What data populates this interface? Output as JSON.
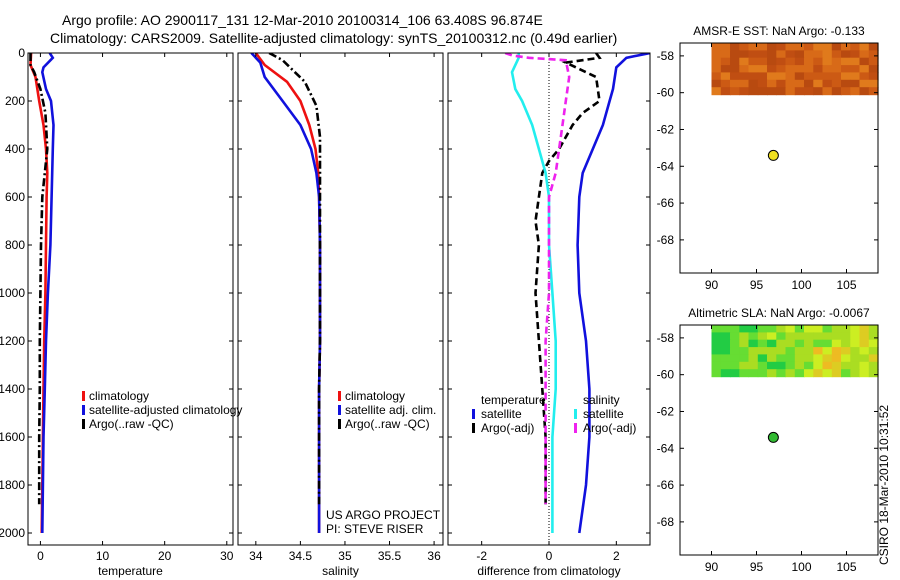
{
  "header": {
    "line1": "Argo profile: AO 2900117_131 12-Mar-2010 20100314_106 63.408S 96.874E",
    "line2": "Climatology: CARS2009. Satellite-adjusted climatology: synTS_20100312.nc (0.49d earlier)"
  },
  "side_label": "CSIRO 18-Mar-2010 10:31:52",
  "colors": {
    "clim": "#ee1111",
    "sat": "#1111dd",
    "argo": "#000000",
    "sal_sat": "#22eeee",
    "sal_argo": "#ee22ee",
    "dot_sst": "#f0e020",
    "dot_sla": "#33bb33"
  },
  "chart_data": [
    {
      "type": "line",
      "id": "temperature",
      "xlabel": "temperature",
      "xlim": [
        -2,
        31
      ],
      "ylim": [
        0,
        2050
      ],
      "xticks": [
        0,
        10,
        20,
        30
      ],
      "xtick_labels": [
        "0",
        "10",
        "20",
        "30"
      ],
      "yticks": [
        0,
        200,
        400,
        600,
        800,
        1000,
        1200,
        1400,
        1600,
        1800,
        2000
      ],
      "ytick_labels": [
        "0",
        "200",
        "400",
        "600",
        "800",
        "1000",
        "1200",
        "1400",
        "1600",
        "1800",
        "2000"
      ],
      "series": [
        {
          "name": "climatology",
          "color_key": "clim",
          "dash": "solid",
          "points": [
            [
              -1.5,
              0
            ],
            [
              -1.6,
              50
            ],
            [
              -0.8,
              100
            ],
            [
              -0.2,
              200
            ],
            [
              0.5,
              300
            ],
            [
              0.9,
              400
            ],
            [
              1.1,
              500
            ],
            [
              1.0,
              600
            ],
            [
              0.9,
              800
            ],
            [
              0.8,
              1000
            ],
            [
              0.6,
              1200
            ],
            [
              0.5,
              1400
            ],
            [
              0.4,
              1600
            ],
            [
              0.3,
              1800
            ],
            [
              0.2,
              2000
            ]
          ]
        },
        {
          "name": "satellite-adjusted climatology",
          "color_key": "sat",
          "dash": "solid",
          "points": [
            [
              1.5,
              0
            ],
            [
              2.0,
              20
            ],
            [
              0.5,
              60
            ],
            [
              0.3,
              80
            ],
            [
              0.9,
              150
            ],
            [
              1.7,
              200
            ],
            [
              2.1,
              300
            ],
            [
              2.0,
              400
            ],
            [
              1.9,
              500
            ],
            [
              1.8,
              600
            ],
            [
              1.6,
              800
            ],
            [
              1.2,
              1000
            ],
            [
              0.9,
              1200
            ],
            [
              0.7,
              1400
            ],
            [
              0.5,
              1600
            ],
            [
              0.4,
              1800
            ],
            [
              0.3,
              2000
            ]
          ]
        },
        {
          "name": "Argo(..raw -QC)",
          "color_key": "argo",
          "dash": "dashdot",
          "points": [
            [
              -1.6,
              0
            ],
            [
              -1.6,
              50
            ],
            [
              -1.0,
              80
            ],
            [
              0.0,
              150
            ],
            [
              0.8,
              250
            ],
            [
              1.1,
              400
            ],
            [
              0.7,
              500
            ],
            [
              0.3,
              600
            ],
            [
              0.1,
              800
            ],
            [
              0.0,
              1000
            ],
            [
              -0.1,
              1200
            ],
            [
              -0.1,
              1400
            ],
            [
              -0.2,
              1600
            ],
            [
              -0.2,
              1800
            ],
            [
              -0.2,
              1880
            ]
          ]
        }
      ],
      "legend": {
        "placement": "lower-right",
        "entries": [
          "climatology",
          "satellite-adjusted climatology",
          "Argo(..raw -QC)"
        ]
      }
    },
    {
      "type": "line",
      "id": "salinity",
      "xlabel": "salinity",
      "xlim": [
        33.8,
        36.1
      ],
      "ylim": [
        0,
        2050
      ],
      "xticks": [
        34,
        34.5,
        35,
        35.5,
        36
      ],
      "xtick_labels": [
        "34",
        "34.5",
        "35",
        "35.5",
        "36"
      ],
      "yticks": [
        0,
        200,
        400,
        600,
        800,
        1000,
        1200,
        1400,
        1600,
        1800,
        2000
      ],
      "series": [
        {
          "name": "climatology",
          "color_key": "clim",
          "dash": "solid",
          "points": [
            [
              34.0,
              0
            ],
            [
              34.1,
              50
            ],
            [
              34.35,
              120
            ],
            [
              34.5,
              200
            ],
            [
              34.6,
              300
            ],
            [
              34.67,
              400
            ],
            [
              34.7,
              500
            ],
            [
              34.71,
              600
            ],
            [
              34.72,
              800
            ],
            [
              34.72,
              1000
            ],
            [
              34.72,
              1200
            ],
            [
              34.71,
              1400
            ],
            [
              34.71,
              1600
            ],
            [
              34.71,
              1800
            ],
            [
              34.71,
              2000
            ]
          ]
        },
        {
          "name": "satellite adj. clim.",
          "color_key": "sat",
          "dash": "solid",
          "points": [
            [
              33.95,
              0
            ],
            [
              34.05,
              40
            ],
            [
              34.1,
              100
            ],
            [
              34.3,
              200
            ],
            [
              34.5,
              300
            ],
            [
              34.62,
              400
            ],
            [
              34.68,
              500
            ],
            [
              34.71,
              600
            ],
            [
              34.72,
              800
            ],
            [
              34.72,
              1000
            ],
            [
              34.72,
              1200
            ],
            [
              34.71,
              1400
            ],
            [
              34.71,
              1600
            ],
            [
              34.71,
              1800
            ],
            [
              34.71,
              2000
            ]
          ]
        },
        {
          "name": "Argo(..raw -QC)",
          "color_key": "argo",
          "dash": "dashdot",
          "points": [
            [
              34.15,
              0
            ],
            [
              34.3,
              30
            ],
            [
              34.55,
              120
            ],
            [
              34.68,
              220
            ],
            [
              34.72,
              350
            ],
            [
              34.72,
              500
            ],
            [
              34.72,
              600
            ],
            [
              34.72,
              800
            ],
            [
              34.72,
              1000
            ],
            [
              34.72,
              1200
            ],
            [
              34.71,
              1400
            ],
            [
              34.71,
              1600
            ],
            [
              34.71,
              1800
            ],
            [
              34.71,
              1880
            ]
          ]
        }
      ],
      "legend": {
        "placement": "lower-right",
        "entries": [
          "climatology",
          "satellite adj. clim.",
          "Argo(..raw -QC)"
        ]
      },
      "annotations": [
        "US ARGO PROJECT",
        "PI: STEVE RISER"
      ]
    },
    {
      "type": "line",
      "id": "difference",
      "xlabel": "difference from climatology",
      "xlim": [
        -3,
        3
      ],
      "ylim": [
        0,
        2050
      ],
      "xticks": [
        -2,
        0,
        2
      ],
      "xtick_labels": [
        "-2",
        "0",
        "2"
      ],
      "yticks": [
        0,
        200,
        400,
        600,
        800,
        1000,
        1200,
        1400,
        1600,
        1800,
        2000
      ],
      "series": [
        {
          "group": "temperature",
          "name": "satellite",
          "color_key": "sat",
          "dash": "solid",
          "points": [
            [
              3.0,
              0
            ],
            [
              2.3,
              20
            ],
            [
              2.0,
              60
            ],
            [
              1.9,
              150
            ],
            [
              1.8,
              200
            ],
            [
              1.6,
              300
            ],
            [
              1.3,
              400
            ],
            [
              1.0,
              500
            ],
            [
              0.9,
              600
            ],
            [
              0.85,
              800
            ],
            [
              0.9,
              1000
            ],
            [
              1.1,
              1200
            ],
            [
              1.2,
              1400
            ],
            [
              1.2,
              1600
            ],
            [
              1.1,
              1800
            ],
            [
              0.9,
              2000
            ]
          ]
        },
        {
          "group": "temperature",
          "name": "Argo(-adj)",
          "color_key": "argo",
          "dash": "dashed",
          "points": [
            [
              1.4,
              0
            ],
            [
              1.5,
              20
            ],
            [
              0.5,
              40
            ],
            [
              1.4,
              100
            ],
            [
              1.5,
              200
            ],
            [
              1.0,
              250
            ],
            [
              0.7,
              300
            ],
            [
              0.3,
              400
            ],
            [
              0.0,
              450
            ],
            [
              -0.2,
              500
            ],
            [
              -0.3,
              600
            ],
            [
              -0.4,
              700
            ],
            [
              -0.3,
              800
            ],
            [
              -0.4,
              1000
            ],
            [
              -0.3,
              1200
            ],
            [
              -0.2,
              1400
            ],
            [
              -0.1,
              1600
            ],
            [
              -0.1,
              1800
            ],
            [
              -0.1,
              1880
            ]
          ]
        },
        {
          "group": "salinity",
          "name": "satellite",
          "color_key": "sal_sat",
          "dash": "solid",
          "points": [
            [
              -0.9,
              0
            ],
            [
              -0.9,
              20
            ],
            [
              -1.1,
              80
            ],
            [
              -1.0,
              150
            ],
            [
              -0.8,
              200
            ],
            [
              -0.5,
              300
            ],
            [
              -0.3,
              400
            ],
            [
              -0.1,
              500
            ],
            [
              0.0,
              600
            ],
            [
              0.0,
              800
            ],
            [
              0.1,
              1000
            ],
            [
              0.2,
              1200
            ],
            [
              0.2,
              1400
            ],
            [
              0.1,
              1600
            ],
            [
              0.1,
              1800
            ],
            [
              0.1,
              2000
            ]
          ]
        },
        {
          "group": "salinity",
          "name": "Argo(-adj)",
          "color_key": "sal_argo",
          "dash": "dashed",
          "points": [
            [
              -1.3,
              0
            ],
            [
              -1.1,
              10
            ],
            [
              -0.6,
              20
            ],
            [
              0.5,
              30
            ],
            [
              0.6,
              100
            ],
            [
              0.5,
              200
            ],
            [
              0.4,
              300
            ],
            [
              0.3,
              400
            ],
            [
              0.2,
              500
            ],
            [
              0.0,
              600
            ],
            [
              0.0,
              800
            ],
            [
              0.0,
              1000
            ],
            [
              -0.1,
              1200
            ],
            [
              -0.1,
              1400
            ],
            [
              -0.1,
              1600
            ],
            [
              -0.1,
              1800
            ],
            [
              -0.1,
              1880
            ]
          ]
        }
      ],
      "legend": {
        "placement": "lower-center",
        "groups": [
          {
            "title": "temperature",
            "entries": [
              "satellite",
              "Argo(-adj)"
            ]
          },
          {
            "title": "salinity",
            "entries": [
              "satellite",
              "Argo(-adj)"
            ]
          }
        ]
      }
    },
    {
      "type": "heatmap",
      "id": "sst_map",
      "title": "AMSR-E SST: NaN Argo: -0.133",
      "xlim": [
        86.5,
        108.5
      ],
      "ylim": [
        -69.8,
        -57.3
      ],
      "xticks": [
        90,
        95,
        100,
        105
      ],
      "xtick_labels": [
        "90",
        "95",
        "100",
        "105"
      ],
      "yticks": [
        -68,
        -66,
        -64,
        -62,
        -60,
        -58
      ],
      "ytick_labels": [
        "-68",
        "-66",
        "-64",
        "-62",
        "-60",
        "-58"
      ],
      "field_extent": {
        "lon": [
          90,
          108.5
        ],
        "lat": [
          -60.1,
          -57.3
        ]
      },
      "field_colors": [
        "#b84a10",
        "#cc5a14",
        "#d86a18",
        "#e07a1c",
        "#c04e12"
      ],
      "float_position": {
        "lon": 96.874,
        "lat": -63.408,
        "color_key": "dot_sst"
      }
    },
    {
      "type": "heatmap",
      "id": "sla_map",
      "title": "Altimetric SLA: NaN Argo: -0.0067",
      "xlim": [
        86.5,
        108.5
      ],
      "ylim": [
        -69.8,
        -57.3
      ],
      "xticks": [
        90,
        95,
        100,
        105
      ],
      "xtick_labels": [
        "90",
        "95",
        "100",
        "105"
      ],
      "yticks": [
        -68,
        -66,
        -64,
        -62,
        -60,
        -58
      ],
      "ytick_labels": [
        "-68",
        "-66",
        "-64",
        "-62",
        "-60",
        "-58"
      ],
      "field_extent": {
        "lon": [
          90,
          108.5
        ],
        "lat": [
          -60.1,
          -57.3
        ]
      },
      "field_colors": [
        "#22cc44",
        "#66dd33",
        "#aadd22",
        "#ccee22",
        "#ddcc22",
        "#eebb22"
      ],
      "float_position": {
        "lon": 96.874,
        "lat": -63.408,
        "color_key": "dot_sla"
      }
    }
  ]
}
